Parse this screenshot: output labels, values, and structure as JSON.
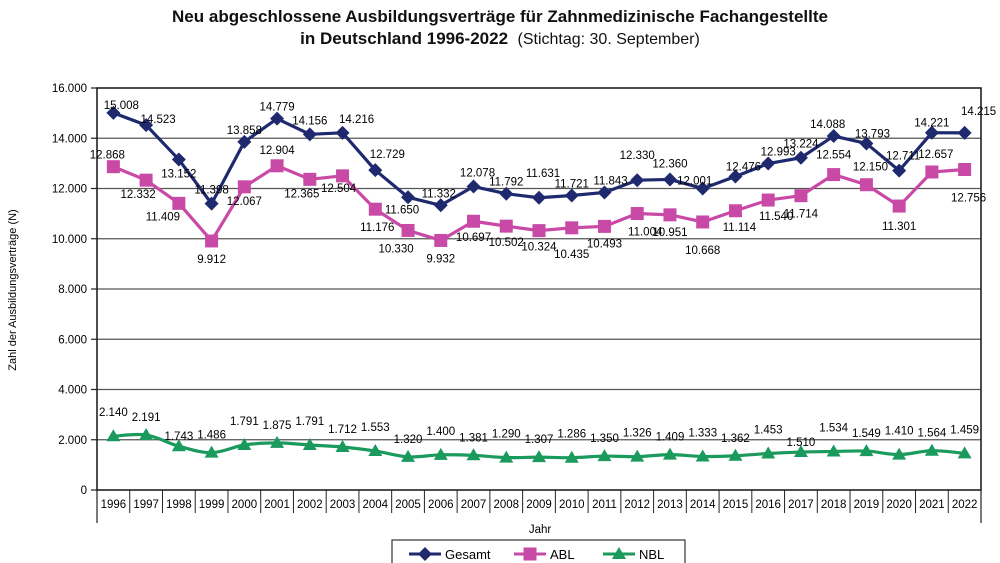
{
  "chart_data": {
    "type": "line",
    "title": "Neu abgeschlossene Ausbildungsverträge für Zahnmedizinische Fachangestellte",
    "title_line2": "in Deutschland 1996-2022",
    "subtitle": "(Stichtag: 30. September)",
    "xlabel": "Jahr",
    "ylabel": "Zahl der Ausbildungsverträge (N)",
    "ylim": [
      0,
      16000
    ],
    "yticks": [
      0,
      2000,
      4000,
      6000,
      8000,
      10000,
      12000,
      14000,
      16000
    ],
    "ytick_labels": [
      "0",
      "2.000",
      "4.000",
      "6.000",
      "8.000",
      "10.000",
      "12.000",
      "14.000",
      "16.000"
    ],
    "grid": true,
    "legend_position": "bottom",
    "categories": [
      "1996",
      "1997",
      "1998",
      "1999",
      "2000",
      "2001",
      "2002",
      "2003",
      "2004",
      "2005",
      "2006",
      "2007",
      "2008",
      "2009",
      "2010",
      "2011",
      "2012",
      "2013",
      "2014",
      "2015",
      "2016",
      "2017",
      "2018",
      "2019",
      "2020",
      "2021",
      "2022"
    ],
    "series": [
      {
        "name": "Gesamt",
        "color": "#1f2a6e",
        "marker": "diamond",
        "values": [
          15008,
          14523,
          13152,
          11398,
          13858,
          14779,
          14156,
          14216,
          12729,
          11650,
          11332,
          12078,
          11792,
          11631,
          11721,
          11843,
          12330,
          12360,
          12001,
          12476,
          12993,
          13224,
          14088,
          13793,
          12711,
          14221,
          14215
        ],
        "labels": [
          "15.008",
          "14.523",
          "13.152",
          "11.398",
          "13.858",
          "14.779",
          "14.156",
          "14.216",
          "12.729",
          "11.650",
          "11.332",
          "12.078",
          "11.792",
          "11.631",
          "11.721",
          "11.843",
          "12.330",
          "12.360",
          "12.001",
          "12.476",
          "12.993",
          "13.224",
          "14.088",
          "13.793",
          "12.711",
          "14.221",
          "14.215"
        ]
      },
      {
        "name": "ABL",
        "color": "#c94aa6",
        "marker": "square",
        "values": [
          12868,
          12332,
          11409,
          9912,
          12067,
          12904,
          12365,
          12504,
          11176,
          10330,
          9932,
          10697,
          10502,
          10324,
          10435,
          10493,
          11004,
          10951,
          10668,
          11114,
          11540,
          11714,
          12554,
          12150,
          11301,
          12657,
          12756
        ],
        "labels": [
          "12.868",
          "12.332",
          "11.409",
          "9.912",
          "12.067",
          "12.904",
          "12.365",
          "12.504",
          "11.176",
          "10.330",
          "9.932",
          "10.697",
          "10.502",
          "10.324",
          "10.435",
          "10.493",
          "11.004",
          "10.951",
          "10.668",
          "11.114",
          "11.540",
          "11.714",
          "12.554",
          "12.150",
          "11.301",
          "12.657",
          "12.756"
        ]
      },
      {
        "name": "NBL",
        "color": "#1a9a5c",
        "marker": "triangle",
        "values": [
          2140,
          2191,
          1743,
          1486,
          1791,
          1875,
          1791,
          1712,
          1553,
          1320,
          1400,
          1381,
          1290,
          1307,
          1286,
          1350,
          1326,
          1409,
          1333,
          1362,
          1453,
          1510,
          1534,
          1549,
          1410,
          1564,
          1459
        ],
        "labels": [
          "2.140",
          "2.191",
          "1.743",
          "1.486",
          "1.791",
          "1.875",
          "1.791",
          "1.712",
          "1.553",
          "1.320",
          "1.400",
          "1.381",
          "1.290",
          "1.307",
          "1.286",
          "1.350",
          "1.326",
          "1.409",
          "1.333",
          "1.362",
          "1.453",
          "1.510",
          "1.534",
          "1.549",
          "1.410",
          "1.564",
          "1.459"
        ]
      }
    ]
  }
}
